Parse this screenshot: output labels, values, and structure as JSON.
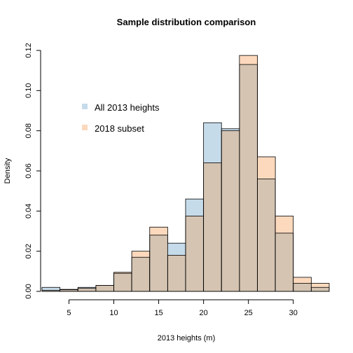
{
  "chart_data": {
    "type": "bar",
    "title": "Sample distribution comparison",
    "xlabel": "2013 heights (m)",
    "ylabel": "Density",
    "xlim": [
      2,
      34
    ],
    "ylim": [
      0,
      0.12
    ],
    "x_ticks": [
      5,
      10,
      15,
      20,
      25,
      30
    ],
    "y_ticks": [
      0,
      0.02,
      0.04,
      0.06,
      0.08,
      0.1,
      0.12
    ],
    "y_tick_labels": [
      "0.00",
      "0.02",
      "0.04",
      "0.06",
      "0.08",
      "0.10",
      "0.12"
    ],
    "bin_edges": [
      2,
      4,
      6,
      8,
      10,
      12,
      14,
      16,
      18,
      20,
      22,
      24,
      26,
      28,
      30,
      32,
      34
    ],
    "legend_position": "top-left",
    "grid": false,
    "series": [
      {
        "name": "All 2013 heights",
        "color": "#c6dbea",
        "values": [
          0.002,
          0.001,
          0.002,
          0.003,
          0.009,
          0.017,
          0.028,
          0.024,
          0.046,
          0.084,
          0.081,
          0.113,
          0.056,
          0.029,
          0.004,
          0.002
        ]
      },
      {
        "name": "2018 subset",
        "color": "#fcd9bd",
        "values": [
          0.0005,
          0.0008,
          0.0015,
          0.003,
          0.0095,
          0.02,
          0.032,
          0.018,
          0.0375,
          0.064,
          0.08,
          0.1175,
          0.067,
          0.0375,
          0.007,
          0.004
        ]
      }
    ],
    "overlap_color": "#d5c4b2"
  }
}
